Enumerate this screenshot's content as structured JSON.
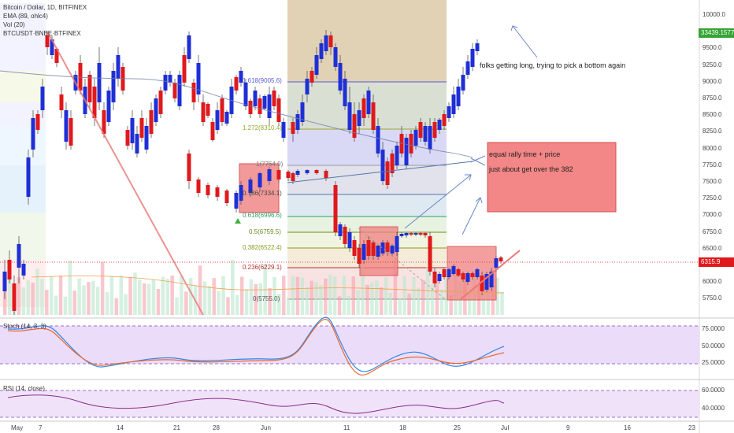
{
  "legend": {
    "title": "Bitcoin / Dollar, 1D, BITFINEX",
    "ema": "EMA (89, ohlc4)",
    "vol": "Vol (20)",
    "compare": "BTCUSDT·BNBE·BTFINEX"
  },
  "price_axis": [
    "10000.0",
    "9750.0",
    "9500.0",
    "9250.0",
    "9000.0",
    "8750.0",
    "8500.0",
    "8250.0",
    "8000.0",
    "7750.0",
    "7500.0",
    "7250.0",
    "7000.0",
    "6750.0",
    "6500.0",
    "6250.0",
    "6000.0",
    "5750.0"
  ],
  "badges": {
    "upper": "33439.1577",
    "current": "6315.9"
  },
  "colors": {
    "upper_badge": "#35a435",
    "current_badge": "#e0191c",
    "bull": "#1f2fd6",
    "bear": "#e0191c"
  },
  "fib_levels": [
    {
      "label": "1.618(9005.6)",
      "color": "#5b5bd6"
    },
    {
      "label": "1.272(8310.4)",
      "color": "#9aa830"
    },
    {
      "label": "1(7764.0)",
      "color": "#777777"
    },
    {
      "label": "0.786(7334.1)",
      "color": "#444444"
    },
    {
      "label": "0.618(6996.6)",
      "color": "#2e9e6b"
    },
    {
      "label": "0.5(6759.5)",
      "color": "#6a8c20"
    },
    {
      "label": "0.382(6522.4)",
      "color": "#8a9a20"
    },
    {
      "label": "0.236(6229.1)",
      "color": "#b23030"
    },
    {
      "label": "0(5755.0)",
      "color": "#555555"
    }
  ],
  "notes": {
    "bottom": "folks getting long, trying to pick a bottom again",
    "rally1": "equal rally time + price",
    "rally2": "just about get over the 382"
  },
  "stoch": {
    "title": "Stoch (14, 3, 3)",
    "ticks": [
      "75.0000",
      "50.0000",
      "25.0000"
    ]
  },
  "rsi": {
    "title": "RSI (14, close)",
    "ticks": [
      "60.0000",
      "40.0000"
    ]
  },
  "time_axis": [
    "May",
    "7",
    "14",
    "21",
    "28",
    "Jun",
    "11",
    "18",
    "25",
    "Jul",
    "9",
    "16",
    "23"
  ]
}
